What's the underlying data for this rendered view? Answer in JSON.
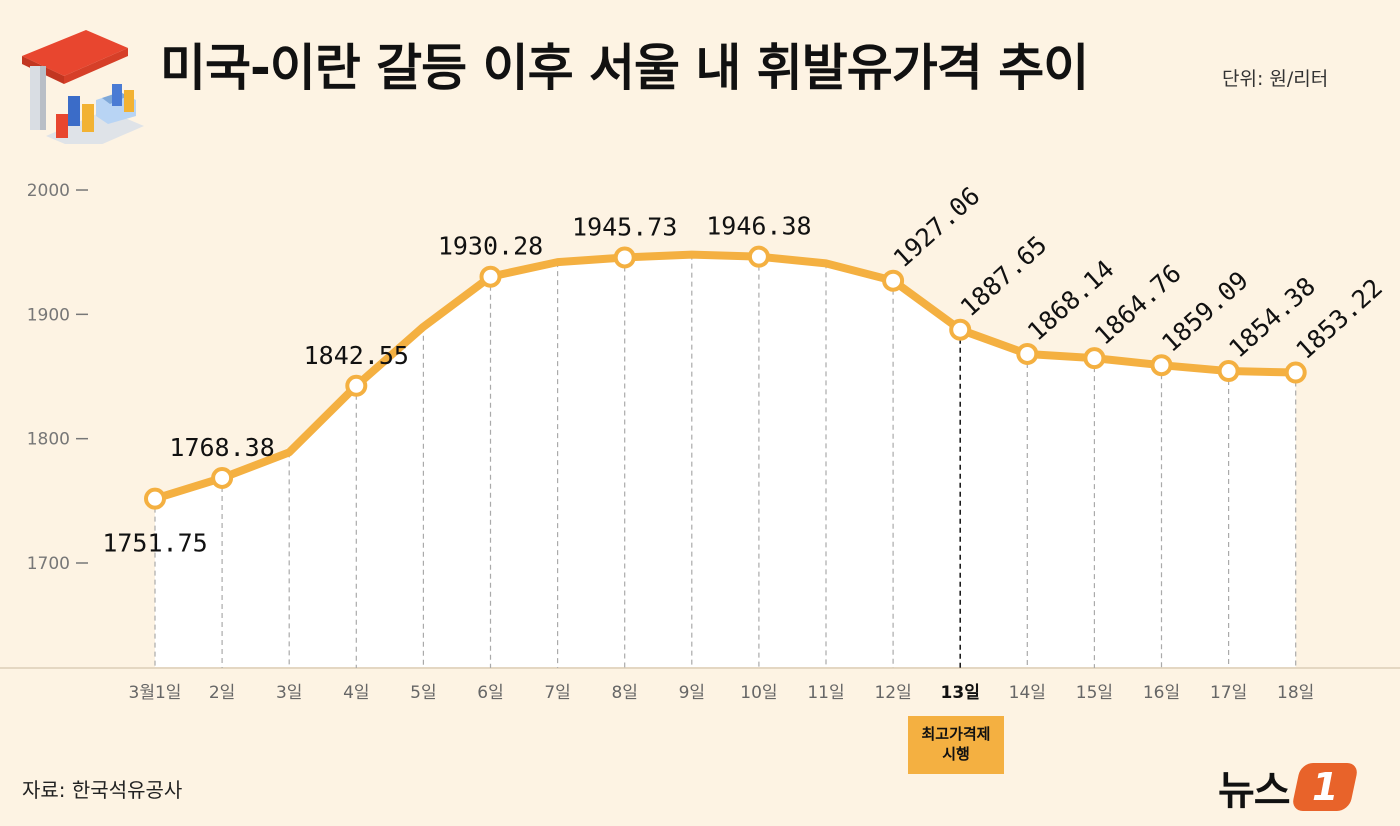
{
  "header": {
    "title": "미국-이란 갈등 이후 서울 내 휘발유가격 추이",
    "unit": "단위: 원/리터"
  },
  "footer": {
    "source": "자료: 한국석유공사",
    "logo_text": "뉴스",
    "logo_badge": "1"
  },
  "annotation": {
    "label_line1": "최고가격제",
    "label_line2": "시행",
    "at_category": "13일"
  },
  "colors": {
    "background": "#fdf3e3",
    "line": "#f4b041",
    "plot_fill": "#ffffff",
    "annotation_box": "#f4b041",
    "logo_badge": "#e8632a"
  },
  "icon": "gas-station-icon",
  "chart_data": {
    "type": "line",
    "title": "미국-이란 갈등 이후 서울 내 휘발유가격 추이",
    "xlabel": "",
    "ylabel": "",
    "ylim": [
      1700,
      2000
    ],
    "yticks": [
      1700,
      1800,
      1900,
      2000
    ],
    "grid": false,
    "categories": [
      "3월1일",
      "2일",
      "3일",
      "4일",
      "5일",
      "6일",
      "7일",
      "8일",
      "9일",
      "10일",
      "11일",
      "12일",
      "13일",
      "14일",
      "15일",
      "16일",
      "17일",
      "18일"
    ],
    "values": [
      1751.75,
      1768.38,
      1789,
      1842.55,
      1890,
      1930.28,
      1942,
      1945.73,
      1948,
      1946.38,
      1941,
      1927.06,
      1887.65,
      1868.14,
      1864.76,
      1859.09,
      1854.38,
      1853.22
    ],
    "marked": [
      true,
      true,
      false,
      true,
      false,
      true,
      false,
      true,
      false,
      true,
      false,
      true,
      true,
      true,
      true,
      true,
      true,
      true
    ],
    "labels": [
      "1751.75",
      "1768.38",
      "",
      "1842.55",
      "",
      "1930.28",
      "",
      "1945.73",
      "",
      "1946.38",
      "",
      "1927.06",
      "1887.65",
      "1868.14",
      "1864.76",
      "1859.09",
      "1854.38",
      "1853.22"
    ]
  }
}
